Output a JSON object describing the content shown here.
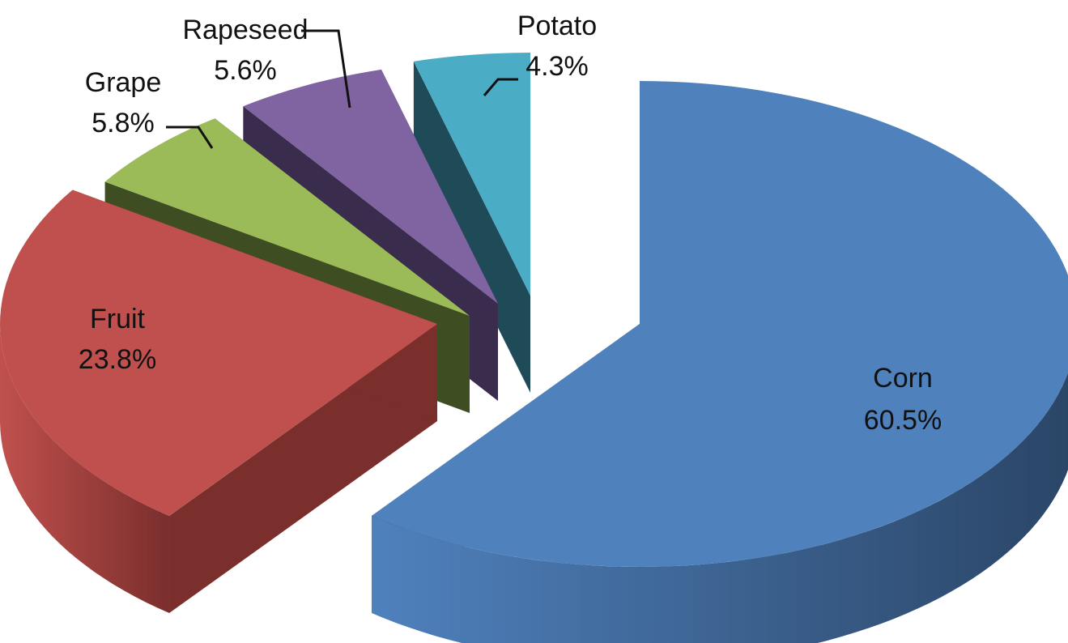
{
  "chart_data": {
    "type": "pie",
    "style": "3d-exploded",
    "title": "",
    "slices": [
      {
        "category": "Corn",
        "value": 60.5,
        "label": "60.5%",
        "color": "#4F81BD",
        "color_side": "#2A4566"
      },
      {
        "category": "Fruit",
        "value": 23.8,
        "label": "23.8%",
        "color": "#C0504D",
        "color_side": "#7A2F2D"
      },
      {
        "category": "Grape",
        "value": 5.8,
        "label": "5.8%",
        "color": "#9BBB59",
        "color_side": "#3F4D22"
      },
      {
        "category": "Rapeseed",
        "value": 5.6,
        "label": "5.6%",
        "color": "#8064A2",
        "color_side": "#3A2C4D"
      },
      {
        "category": "Potato",
        "value": 4.3,
        "label": "4.3%",
        "color": "#4BACC6",
        "color_side": "#1F4A58"
      }
    ],
    "legend": false,
    "data_labels": "category-and-percent"
  }
}
